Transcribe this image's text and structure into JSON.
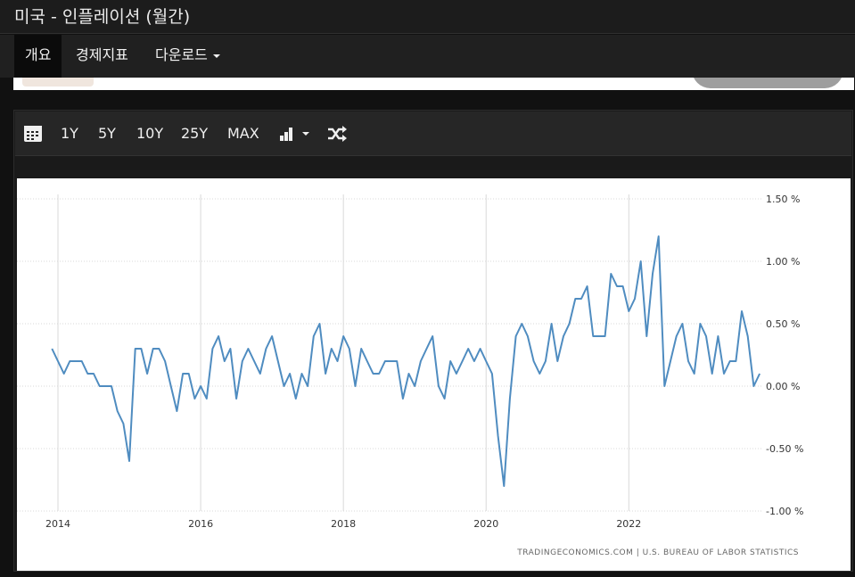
{
  "window": {
    "title": "미국 - 인플레이션 (월간)"
  },
  "nav": {
    "tabs": [
      {
        "label": "개요",
        "active": true
      },
      {
        "label": "경제지표",
        "active": false
      },
      {
        "label": "다운로드",
        "active": false,
        "dropdown": true
      }
    ]
  },
  "toolbar": {
    "calendar_icon": "calendar-icon",
    "ranges": [
      "1Y",
      "5Y",
      "10Y",
      "25Y",
      "MAX"
    ],
    "chart_type_icon": "bar-chart-icon",
    "shuffle_icon": "shuffle-icon"
  },
  "colors": {
    "line": "#4f8cc0",
    "grid": "#d9d9d9",
    "background": "#ffffff",
    "dark": "#1c1c1c"
  },
  "credit": "TRADINGECONOMICS.COM  |  U.S. BUREAU OF LABOR STATISTICS",
  "chart_data": {
    "type": "line",
    "title": "",
    "xlabel": "",
    "ylabel": "",
    "ylim": [
      -1.0,
      1.5
    ],
    "y_ticks": [
      {
        "value": 1.5,
        "label": "1.50 %"
      },
      {
        "value": 1.0,
        "label": "1.00 %"
      },
      {
        "value": 0.5,
        "label": "0.50 %"
      },
      {
        "value": 0.0,
        "label": "0.00 %"
      },
      {
        "value": -0.5,
        "label": "-0.50 %"
      },
      {
        "value": -1.0,
        "label": "-1.00 %"
      }
    ],
    "x_ticks": [
      "2014",
      "2016",
      "2018",
      "2020",
      "2022"
    ],
    "grid": true,
    "series": [
      {
        "start": "2013-12",
        "frequency": "monthly",
        "values": [
          0.3,
          0.2,
          0.1,
          0.2,
          0.2,
          0.2,
          0.1,
          0.1,
          0.0,
          0.0,
          0.0,
          -0.2,
          -0.3,
          -0.6,
          0.3,
          0.3,
          0.1,
          0.3,
          0.3,
          0.2,
          0.0,
          -0.2,
          0.1,
          0.1,
          -0.1,
          0.0,
          -0.1,
          0.3,
          0.4,
          0.2,
          0.3,
          -0.1,
          0.2,
          0.3,
          0.2,
          0.1,
          0.3,
          0.4,
          0.2,
          0.0,
          0.1,
          -0.1,
          0.1,
          0.0,
          0.4,
          0.5,
          0.1,
          0.3,
          0.2,
          0.4,
          0.3,
          0.0,
          0.3,
          0.2,
          0.1,
          0.1,
          0.2,
          0.2,
          0.2,
          -0.1,
          0.1,
          0.0,
          0.2,
          0.3,
          0.4,
          0.0,
          -0.1,
          0.2,
          0.1,
          0.2,
          0.3,
          0.2,
          0.3,
          0.2,
          0.1,
          -0.4,
          -0.8,
          -0.1,
          0.4,
          0.5,
          0.4,
          0.2,
          0.1,
          0.2,
          0.5,
          0.2,
          0.4,
          0.5,
          0.7,
          0.7,
          0.8,
          0.4,
          0.4,
          0.4,
          0.9,
          0.8,
          0.8,
          0.6,
          0.7,
          1.0,
          0.4,
          0.9,
          1.2,
          0.0,
          0.2,
          0.4,
          0.5,
          0.2,
          0.1,
          0.5,
          0.4,
          0.1,
          0.4,
          0.1,
          0.2,
          0.2,
          0.6,
          0.4,
          0.0,
          0.1
        ]
      }
    ]
  }
}
